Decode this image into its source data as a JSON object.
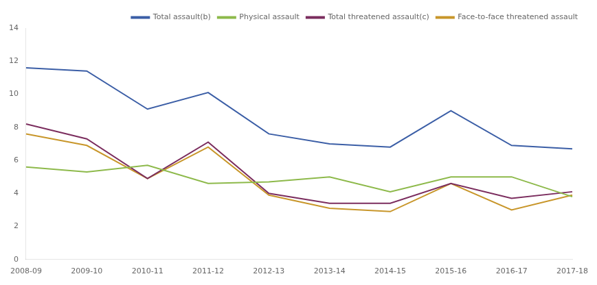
{
  "chart_data": {
    "type": "line",
    "categories": [
      "2008-09",
      "2009-10",
      "2010-11",
      "2011-12",
      "2012-13",
      "2013-14",
      "2014-15",
      "2015-16",
      "2016-17",
      "2017-18"
    ],
    "series": [
      {
        "name": "Total assault(b)",
        "color": "#3B5EA6",
        "marker": "none",
        "line_style": "solid",
        "values": [
          11.6,
          11.4,
          9.1,
          10.1,
          7.6,
          7.0,
          6.8,
          9.0,
          6.9,
          6.7
        ]
      },
      {
        "name": "Physical assault",
        "color": "#8DB94A",
        "marker": "none",
        "line_style": "solid",
        "values": [
          5.6,
          5.3,
          5.7,
          4.6,
          4.7,
          5.0,
          4.1,
          5.0,
          5.0,
          3.8
        ]
      },
      {
        "name": "Total threatened assault(c)",
        "color": "#7B2D5E",
        "marker": "none",
        "line_style": "solid",
        "values": [
          8.2,
          7.3,
          4.9,
          7.1,
          4.0,
          3.4,
          3.4,
          4.6,
          3.7,
          4.1
        ]
      },
      {
        "name": "Face-to-face threatened assault",
        "color": "#C8962A",
        "marker": "none",
        "line_style": "solid",
        "values": [
          7.6,
          6.9,
          4.9,
          6.8,
          3.9,
          3.1,
          2.9,
          4.6,
          3.0,
          3.9
        ]
      }
    ],
    "ylim": [
      0,
      14
    ],
    "yticks": [
      0,
      2,
      4,
      6,
      8,
      10,
      12,
      14
    ],
    "grid": false,
    "legend": "upper right"
  }
}
